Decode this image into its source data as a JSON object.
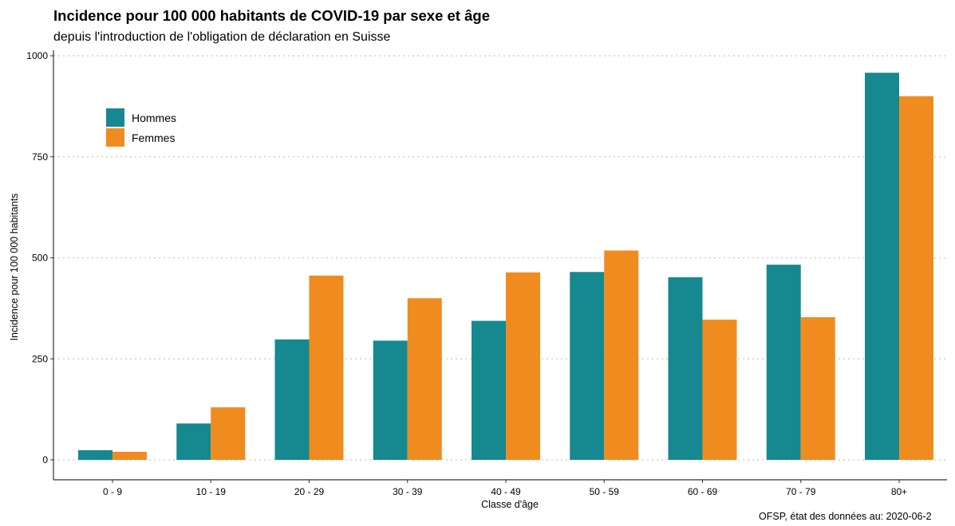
{
  "header": {
    "title": "Incidence pour 100 000 habitants de COVID-19 par sexe et âge",
    "subtitle": "depuis l'introduction de l'obligation de déclaration en Suisse"
  },
  "caption": "OFSP, état des données au: 2020-06-2",
  "colors": {
    "hommes": "#16888f",
    "femmes": "#f08b20",
    "grid": "#c8c8c8"
  },
  "chart_data": {
    "type": "bar",
    "title": "Incidence pour 100 000 habitants de COVID-19 par sexe et âge",
    "subtitle": "depuis l'introduction de l'obligation de déclaration en Suisse",
    "xlabel": "Classe d'âge",
    "ylabel": "Incidence pour 100 000 habitants",
    "categories": [
      "0 - 9",
      "10 - 19",
      "20 - 29",
      "30 - 39",
      "40 - 49",
      "50 - 59",
      "60 - 69",
      "70 - 79",
      "80+"
    ],
    "series": [
      {
        "name": "Hommes",
        "values": [
          24,
          90,
          298,
          295,
          344,
          465,
          452,
          483,
          958
        ]
      },
      {
        "name": "Femmes",
        "values": [
          20,
          130,
          456,
          400,
          464,
          518,
          347,
          353,
          900
        ]
      }
    ],
    "ylim": [
      0,
      1000
    ],
    "yticks": [
      0,
      250,
      500,
      750,
      1000
    ],
    "grid": "horizontal dotted",
    "legend_position": "top-left"
  }
}
